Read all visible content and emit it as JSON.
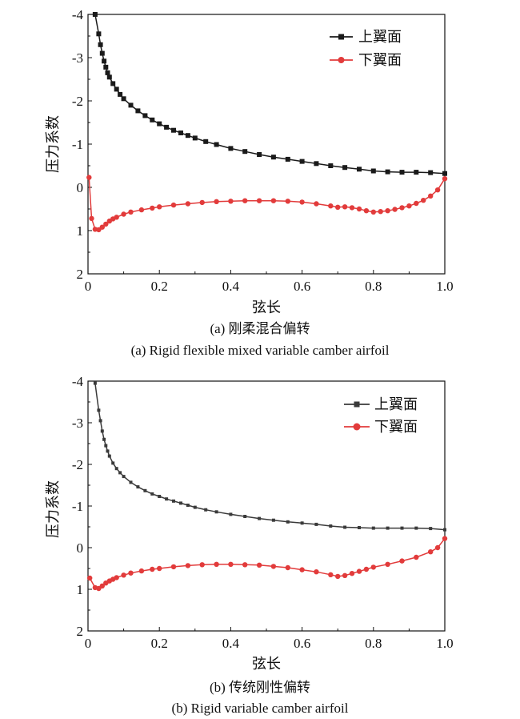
{
  "chart_data": [
    {
      "type": "line",
      "caption": {
        "zh": "(a) 刚柔混合偏转",
        "en": "(a) Rigid flexible mixed variable camber airfoil"
      },
      "xlabel": "弦长",
      "ylabel": "压力系数",
      "xlim": [
        0,
        1.0
      ],
      "ylim": [
        -4,
        2
      ],
      "y_inverted": true,
      "xticks": [
        0,
        0.2,
        0.4,
        0.6,
        0.8,
        1.0
      ],
      "xtick_labels": [
        "0",
        "0.2",
        "0.4",
        "0.6",
        "0.8",
        "1.0"
      ],
      "yticks": [
        -4,
        -3,
        -2,
        -1,
        0,
        1,
        2
      ],
      "ytick_labels": [
        "-4",
        "-3",
        "-2",
        "-1",
        "0",
        "1",
        "2"
      ],
      "grid": false,
      "legend": "top-right",
      "series": [
        {
          "name": "上翼面",
          "marker": "square",
          "color": "#1a1a1a",
          "x": [
            0.02,
            0.03,
            0.035,
            0.04,
            0.045,
            0.05,
            0.055,
            0.06,
            0.07,
            0.08,
            0.09,
            0.1,
            0.12,
            0.14,
            0.16,
            0.18,
            0.2,
            0.22,
            0.24,
            0.26,
            0.28,
            0.3,
            0.33,
            0.36,
            0.4,
            0.44,
            0.48,
            0.52,
            0.56,
            0.6,
            0.64,
            0.68,
            0.72,
            0.76,
            0.8,
            0.84,
            0.88,
            0.92,
            0.96,
            1.0
          ],
          "y": [
            -4.0,
            -3.55,
            -3.3,
            -3.1,
            -2.92,
            -2.78,
            -2.65,
            -2.55,
            -2.4,
            -2.27,
            -2.15,
            -2.05,
            -1.9,
            -1.77,
            -1.66,
            -1.56,
            -1.47,
            -1.39,
            -1.32,
            -1.26,
            -1.2,
            -1.14,
            -1.06,
            -0.99,
            -0.9,
            -0.83,
            -0.76,
            -0.7,
            -0.65,
            -0.6,
            -0.55,
            -0.5,
            -0.46,
            -0.42,
            -0.38,
            -0.36,
            -0.35,
            -0.35,
            -0.34,
            -0.32
          ]
        },
        {
          "name": "下翼面",
          "marker": "circle",
          "color": "#e23b3b",
          "x": [
            0.003,
            0.01,
            0.02,
            0.03,
            0.04,
            0.05,
            0.06,
            0.07,
            0.08,
            0.1,
            0.12,
            0.15,
            0.18,
            0.2,
            0.24,
            0.28,
            0.32,
            0.36,
            0.4,
            0.44,
            0.48,
            0.52,
            0.56,
            0.6,
            0.64,
            0.68,
            0.7,
            0.72,
            0.74,
            0.76,
            0.78,
            0.8,
            0.82,
            0.84,
            0.86,
            0.88,
            0.9,
            0.92,
            0.94,
            0.96,
            0.98,
            1.0
          ],
          "y": [
            -0.23,
            0.72,
            0.97,
            0.98,
            0.92,
            0.85,
            0.78,
            0.73,
            0.69,
            0.62,
            0.57,
            0.52,
            0.48,
            0.45,
            0.41,
            0.38,
            0.35,
            0.33,
            0.32,
            0.31,
            0.31,
            0.31,
            0.32,
            0.34,
            0.38,
            0.43,
            0.46,
            0.45,
            0.47,
            0.5,
            0.54,
            0.57,
            0.56,
            0.54,
            0.51,
            0.47,
            0.43,
            0.37,
            0.3,
            0.2,
            0.06,
            -0.2
          ]
        }
      ]
    },
    {
      "type": "line",
      "caption": {
        "zh": "(b) 传统刚性偏转",
        "en": "(b) Rigid variable camber airfoil"
      },
      "xlabel": "弦长",
      "ylabel": "压力系数",
      "xlim": [
        0,
        1.0
      ],
      "ylim": [
        -4,
        2
      ],
      "y_inverted": true,
      "xticks": [
        0,
        0.2,
        0.4,
        0.6,
        0.8,
        1.0
      ],
      "xtick_labels": [
        "0",
        "0.2",
        "0.4",
        "0.6",
        "0.8",
        "1.0"
      ],
      "yticks": [
        -4,
        -3,
        -2,
        -1,
        0,
        1,
        2
      ],
      "ytick_labels": [
        "-4",
        "-3",
        "-2",
        "-1",
        "0",
        "1",
        "2"
      ],
      "grid": false,
      "legend": "top-right",
      "series": [
        {
          "name": "上翼面",
          "marker": "square",
          "color": "#3a3a3a",
          "x": [
            0.02,
            0.03,
            0.035,
            0.04,
            0.045,
            0.05,
            0.055,
            0.06,
            0.07,
            0.08,
            0.09,
            0.1,
            0.12,
            0.14,
            0.16,
            0.18,
            0.2,
            0.22,
            0.24,
            0.26,
            0.28,
            0.3,
            0.33,
            0.36,
            0.4,
            0.44,
            0.48,
            0.52,
            0.56,
            0.6,
            0.64,
            0.68,
            0.72,
            0.76,
            0.8,
            0.84,
            0.88,
            0.92,
            0.96,
            1.0
          ],
          "y": [
            -3.95,
            -3.3,
            -3.05,
            -2.8,
            -2.6,
            -2.45,
            -2.32,
            -2.2,
            -2.03,
            -1.9,
            -1.8,
            -1.71,
            -1.57,
            -1.46,
            -1.37,
            -1.29,
            -1.23,
            -1.17,
            -1.12,
            -1.07,
            -1.02,
            -0.97,
            -0.91,
            -0.86,
            -0.8,
            -0.75,
            -0.7,
            -0.66,
            -0.62,
            -0.59,
            -0.56,
            -0.52,
            -0.49,
            -0.48,
            -0.47,
            -0.47,
            -0.47,
            -0.47,
            -0.46,
            -0.43
          ]
        },
        {
          "name": "下翼面",
          "marker": "circle",
          "color": "#e23b3b",
          "x": [
            0.005,
            0.02,
            0.03,
            0.04,
            0.05,
            0.06,
            0.07,
            0.08,
            0.1,
            0.12,
            0.15,
            0.18,
            0.2,
            0.24,
            0.28,
            0.32,
            0.36,
            0.4,
            0.44,
            0.48,
            0.52,
            0.56,
            0.6,
            0.64,
            0.68,
            0.7,
            0.72,
            0.74,
            0.76,
            0.78,
            0.8,
            0.84,
            0.88,
            0.92,
            0.96,
            0.98,
            1.0
          ],
          "y": [
            0.73,
            0.96,
            0.98,
            0.92,
            0.85,
            0.8,
            0.76,
            0.72,
            0.66,
            0.61,
            0.56,
            0.52,
            0.5,
            0.46,
            0.43,
            0.41,
            0.4,
            0.4,
            0.41,
            0.42,
            0.45,
            0.48,
            0.53,
            0.58,
            0.65,
            0.69,
            0.67,
            0.62,
            0.57,
            0.52,
            0.47,
            0.4,
            0.32,
            0.23,
            0.1,
            0.0,
            -0.22
          ]
        }
      ]
    }
  ]
}
